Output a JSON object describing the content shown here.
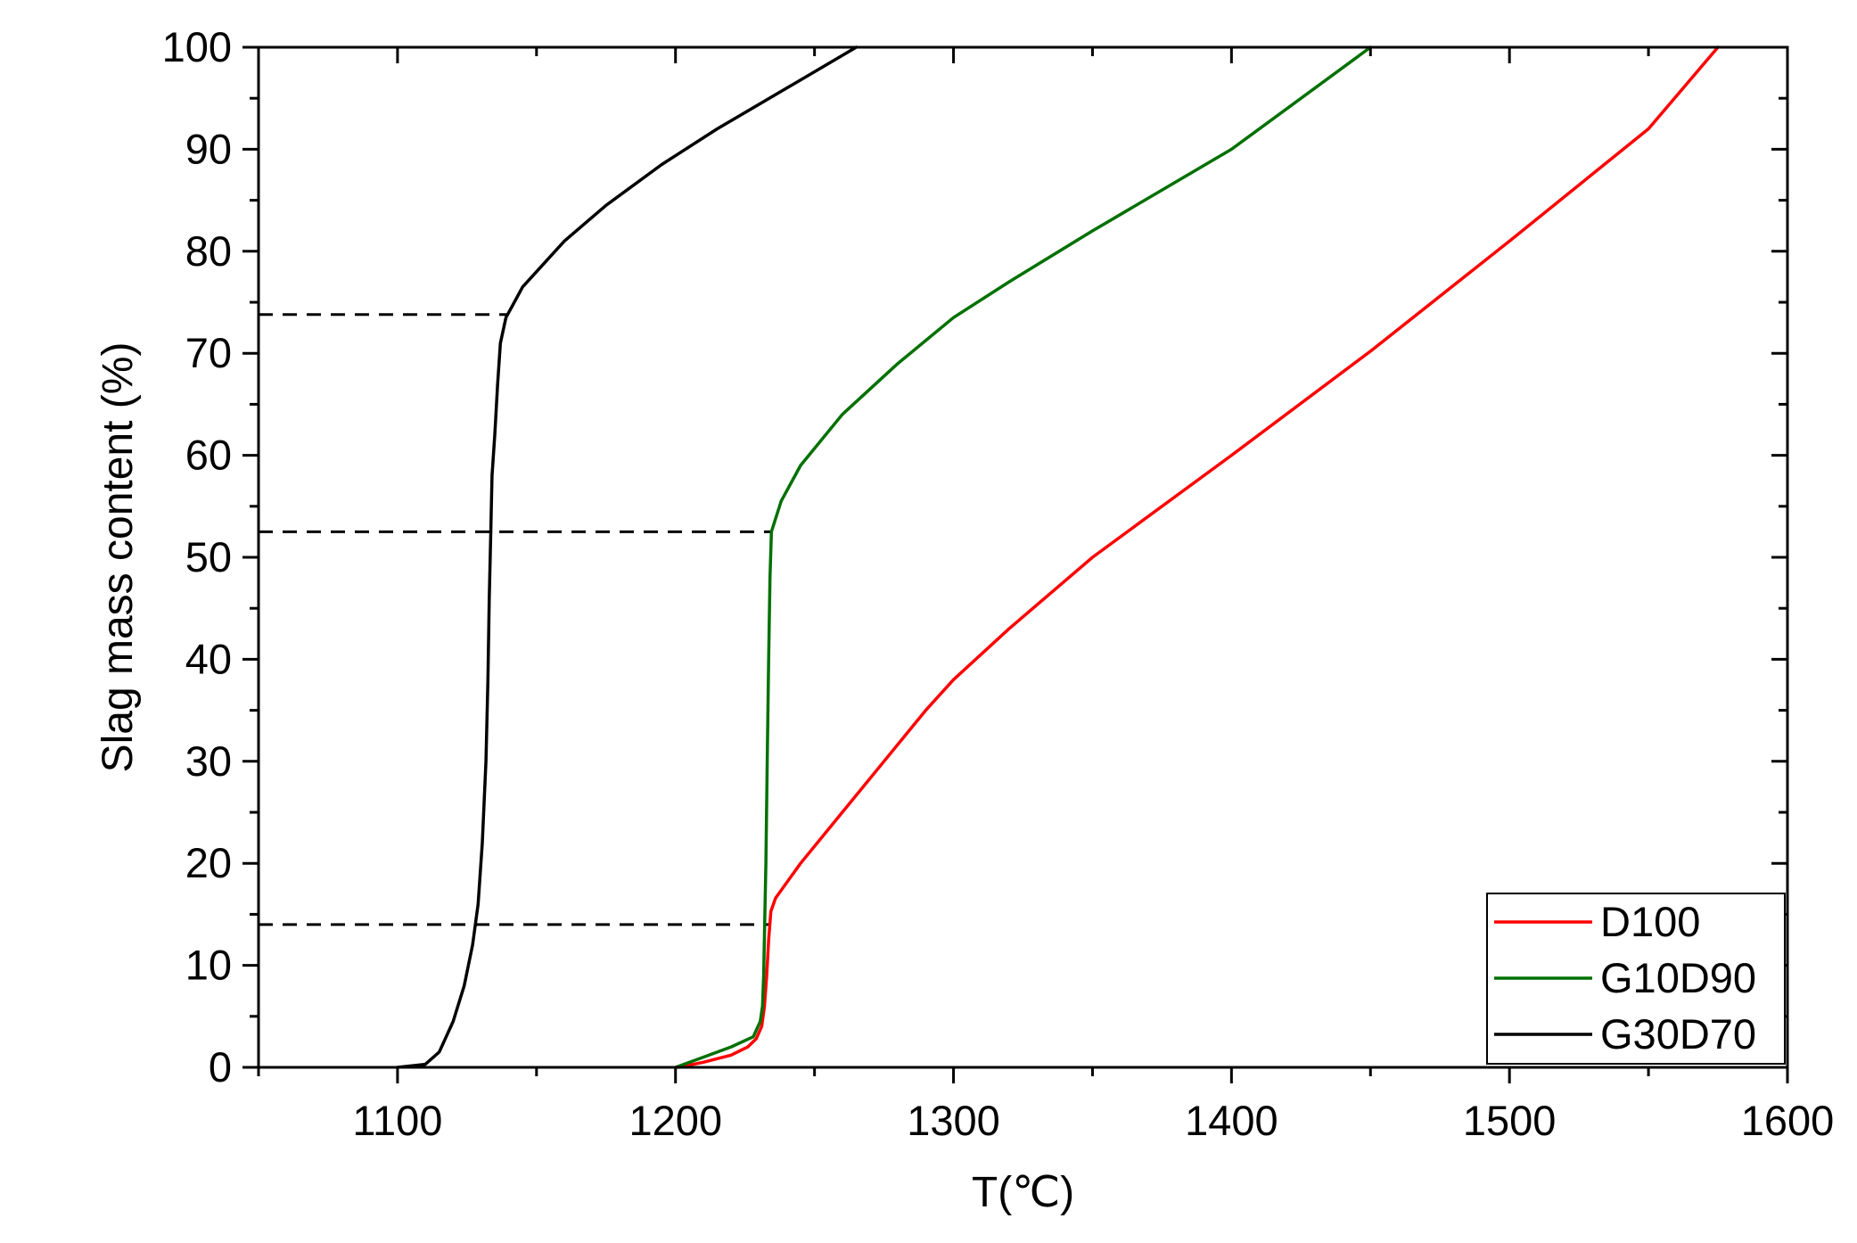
{
  "chart_data": {
    "type": "line",
    "title": "",
    "xlabel": "T(℃)",
    "ylabel": "Slag mass content (%)",
    "xlim": [
      1050,
      1600
    ],
    "ylim": [
      0,
      100
    ],
    "x_ticks": [
      1100,
      1200,
      1300,
      1400,
      1500,
      1600
    ],
    "y_ticks": [
      0,
      10,
      20,
      30,
      40,
      50,
      60,
      70,
      80,
      90,
      100
    ],
    "grid": false,
    "legend": "bottom-right",
    "series": [
      {
        "name": "D100",
        "color": "#ff0000",
        "points": [
          [
            1201,
            0
          ],
          [
            1210,
            0.5
          ],
          [
            1220,
            1.2
          ],
          [
            1226,
            2.0
          ],
          [
            1229,
            2.8
          ],
          [
            1231,
            4
          ],
          [
            1232,
            6
          ],
          [
            1232.8,
            9
          ],
          [
            1233.5,
            12.5
          ],
          [
            1234.3,
            15.3
          ],
          [
            1236,
            16.6
          ],
          [
            1245,
            20
          ],
          [
            1260,
            25
          ],
          [
            1275,
            30
          ],
          [
            1290,
            35
          ],
          [
            1300,
            38
          ],
          [
            1320,
            43
          ],
          [
            1350,
            50
          ],
          [
            1400,
            60
          ],
          [
            1450,
            70.2
          ],
          [
            1500,
            81
          ],
          [
            1550,
            92
          ],
          [
            1575,
            100
          ]
        ]
      },
      {
        "name": "G10D90",
        "color": "#007000",
        "points": [
          [
            1200,
            0
          ],
          [
            1210,
            1.0
          ],
          [
            1220,
            2.0
          ],
          [
            1228,
            3.0
          ],
          [
            1230.5,
            4.5
          ],
          [
            1231.3,
            6
          ],
          [
            1231.7,
            9
          ],
          [
            1232,
            13
          ],
          [
            1232.5,
            20
          ],
          [
            1233,
            30
          ],
          [
            1233.5,
            40
          ],
          [
            1234,
            48
          ],
          [
            1234.5,
            52.5
          ],
          [
            1238,
            55.5
          ],
          [
            1245,
            59
          ],
          [
            1260,
            64
          ],
          [
            1280,
            69
          ],
          [
            1300,
            73.5
          ],
          [
            1320,
            77
          ],
          [
            1350,
            82
          ],
          [
            1400,
            90
          ],
          [
            1450,
            100
          ]
        ]
      },
      {
        "name": "G30D70",
        "color": "#000000",
        "points": [
          [
            1100,
            0
          ],
          [
            1110,
            0.3
          ],
          [
            1115,
            1.5
          ],
          [
            1120,
            4.5
          ],
          [
            1124,
            8
          ],
          [
            1127,
            12
          ],
          [
            1129,
            16
          ],
          [
            1130.5,
            22
          ],
          [
            1131.8,
            30
          ],
          [
            1132.5,
            38
          ],
          [
            1133,
            46
          ],
          [
            1133.5,
            52
          ],
          [
            1134,
            58
          ],
          [
            1135,
            62
          ],
          [
            1136,
            67
          ],
          [
            1137,
            71
          ],
          [
            1139,
            73.5
          ],
          [
            1142,
            75
          ],
          [
            1145,
            76.5
          ],
          [
            1150,
            78
          ],
          [
            1160,
            81
          ],
          [
            1175,
            84.5
          ],
          [
            1195,
            88.5
          ],
          [
            1215,
            92
          ],
          [
            1240,
            96
          ],
          [
            1265,
            100
          ]
        ]
      }
    ],
    "reference_lines": [
      {
        "y": 73.8,
        "x_end": 1140,
        "style": "dashed"
      },
      {
        "y": 52.5,
        "x_end": 1234.5,
        "style": "dashed"
      },
      {
        "y": 14.0,
        "x_end": 1234,
        "style": "dashed"
      }
    ]
  }
}
